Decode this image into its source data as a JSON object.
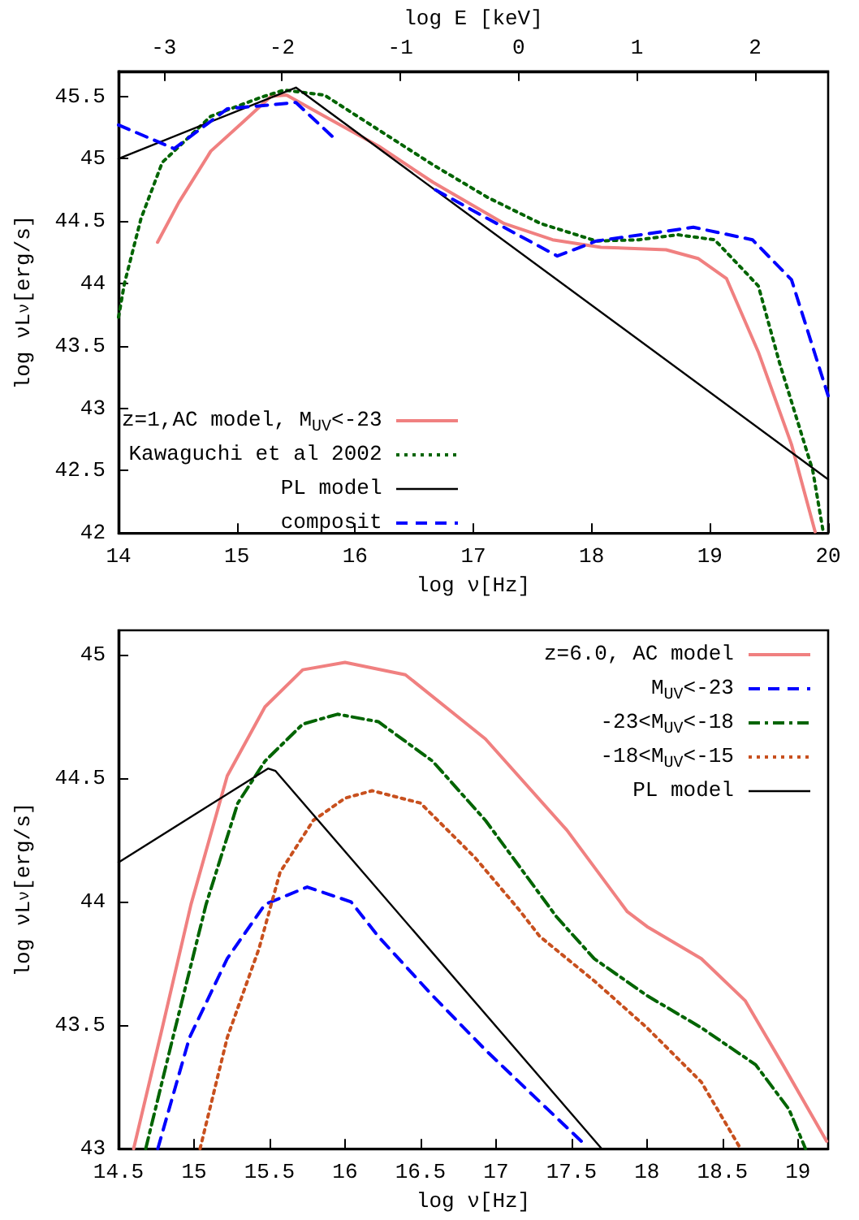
{
  "chart_data": [
    {
      "type": "line",
      "xlabel": "log ν[Hz]",
      "ylabel": "log νL$_{ν}$[erg/s]",
      "x2label": "log E [keV]",
      "xlim": [
        14,
        20
      ],
      "xticks": [
        14,
        15,
        16,
        17,
        18,
        19,
        20
      ],
      "ylim": [
        42,
        45.7
      ],
      "yticks": [
        42,
        42.5,
        43,
        43.5,
        44,
        44.5,
        45,
        45.5
      ],
      "x2lim": [
        -3.383,
        2.617
      ],
      "x2ticks": [
        -3,
        -2,
        -1,
        0,
        1,
        2
      ],
      "grid": false,
      "legend": "bottom left",
      "marker": "none",
      "series": [
        {
          "name": "z=1,AC model, M$_{UV}$<-23",
          "color": "#f08080",
          "line_style": "solid",
          "x": [
            14.33,
            14.51,
            14.78,
            15.06,
            15.29,
            15.42,
            15.74,
            16.2,
            16.66,
            17.26,
            17.67,
            18.08,
            18.63,
            18.9,
            19.14,
            19.41,
            19.69,
            19.89
          ],
          "values": [
            44.33,
            44.65,
            45.06,
            45.3,
            45.5,
            45.51,
            45.34,
            45.1,
            44.81,
            44.48,
            44.35,
            44.29,
            44.27,
            44.2,
            44.04,
            43.45,
            42.71,
            42.01
          ]
        },
        {
          "name": "Kawaguchi et al 2002",
          "color": "#006400",
          "line_style": "dotted",
          "x": [
            14,
            14.05,
            14.19,
            14.37,
            14.78,
            15.2,
            15.4,
            15.74,
            16.2,
            16.66,
            17.12,
            17.57,
            18.04,
            18.4,
            18.73,
            19.04,
            19.41,
            19.59,
            19.87,
            19.96
          ],
          "values": [
            43.73,
            44.0,
            44.52,
            44.97,
            45.34,
            45.49,
            45.55,
            45.51,
            45.23,
            44.95,
            44.69,
            44.48,
            44.34,
            44.35,
            44.39,
            44.35,
            43.98,
            43.36,
            42.5,
            42.0
          ]
        },
        {
          "name": "PL model",
          "color": "#000000",
          "line_style": "solid",
          "x": [
            14,
            15.5,
            20
          ],
          "values": [
            45.0,
            45.57,
            42.43
          ]
        },
        {
          "name": "composit",
          "color": "#0000ff",
          "line_style": "dashed",
          "x": [
            14,
            14.47,
            14.92,
            15.5,
            15.85,
            16.2,
            16.68,
            17.12,
            17.71,
            18.04,
            18.86,
            19.36,
            19.69,
            19.87,
            20
          ],
          "values": [
            45.27,
            45.08,
            45.4,
            45.45,
            45.14,
            null,
            44.75,
            44.52,
            44.22,
            44.34,
            44.45,
            44.35,
            44.03,
            43.49,
            43.1
          ]
        }
      ]
    },
    {
      "type": "line",
      "xlabel": "log ν[Hz]",
      "ylabel": "log νL$_{ν}$[erg/s]",
      "xlim": [
        14.5,
        19.2
      ],
      "xticks": [
        14.5,
        15,
        15.5,
        16,
        16.5,
        17,
        17.5,
        18,
        18.5,
        19
      ],
      "ylim": [
        43,
        45.1
      ],
      "yticks": [
        43,
        43.5,
        44,
        44.5,
        45
      ],
      "grid": false,
      "legend": "top right",
      "marker": "none",
      "series": [
        {
          "name": "z=6.0, AC model",
          "color": "#f08080",
          "line_style": "solid",
          "x": [
            14.6,
            14.79,
            14.98,
            15.22,
            15.47,
            15.72,
            16.0,
            16.4,
            16.93,
            17.47,
            17.87,
            18.0,
            18.36,
            18.65,
            18.9,
            19.19
          ],
          "values": [
            43.0,
            43.49,
            43.99,
            44.51,
            44.79,
            44.94,
            44.97,
            44.92,
            44.66,
            44.29,
            43.96,
            43.9,
            43.77,
            43.6,
            43.34,
            43.03
          ]
        },
        {
          "name": "M$_{UV}$<-23",
          "color": "#0000ff",
          "line_style": "dashed",
          "x": [
            14.76,
            14.97,
            15.22,
            15.47,
            15.75,
            16.04,
            16.22,
            16.58,
            16.93,
            17.29,
            17.6
          ],
          "values": [
            43.0,
            43.45,
            43.77,
            43.99,
            44.06,
            44.0,
            43.86,
            43.62,
            43.4,
            43.19,
            43.01
          ]
        },
        {
          "name": "-23<M$_{UV}$<-18",
          "color": "#006400",
          "line_style": "dashdot",
          "x": [
            14.68,
            14.86,
            15.08,
            15.29,
            15.47,
            15.72,
            15.95,
            16.22,
            16.58,
            16.93,
            17.4,
            17.65,
            18.0,
            18.36,
            18.72,
            18.94,
            19.05
          ],
          "values": [
            43.0,
            43.45,
            43.99,
            44.4,
            44.57,
            44.72,
            44.76,
            44.73,
            44.57,
            44.33,
            43.94,
            43.77,
            43.62,
            43.49,
            43.34,
            43.16,
            43.0
          ]
        },
        {
          "name": "-18<M$_{UV}$<-15",
          "color": "#c8501e",
          "line_style": "dotted",
          "x": [
            15.04,
            15.22,
            15.43,
            15.57,
            15.79,
            16.0,
            16.18,
            16.5,
            16.86,
            17.15,
            17.29,
            17.65,
            18.0,
            18.36,
            18.62
          ],
          "values": [
            43.0,
            43.45,
            43.81,
            44.12,
            44.33,
            44.42,
            44.45,
            44.4,
            44.18,
            43.97,
            43.86,
            43.68,
            43.49,
            43.27,
            43.0
          ]
        },
        {
          "name": "PL model",
          "color": "#000000",
          "line_style": "solid",
          "x": [
            14.5,
            15.49,
            15.54,
            17.7
          ],
          "values": [
            44.16,
            44.54,
            44.53,
            43.0
          ]
        }
      ]
    }
  ]
}
